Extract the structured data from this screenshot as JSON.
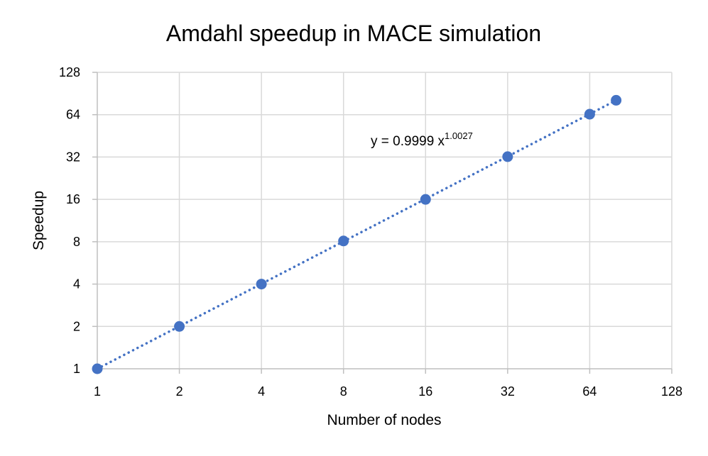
{
  "chart_data": {
    "type": "scatter",
    "title": "Amdahl speedup in MACE simulation",
    "xlabel": "Number of nodes",
    "ylabel": "Speedup",
    "xscale": "log2",
    "yscale": "log2",
    "xlim": [
      1,
      128
    ],
    "ylim": [
      1,
      128
    ],
    "x_ticks": [
      "1",
      "2",
      "4",
      "8",
      "16",
      "32",
      "64",
      "128"
    ],
    "y_ticks": [
      "1",
      "2",
      "4",
      "8",
      "16",
      "32",
      "64",
      "128"
    ],
    "grid": true,
    "legend": "none",
    "series": [
      {
        "x": [
          1,
          2,
          4,
          8,
          16,
          32,
          64,
          80
        ],
        "y": [
          1,
          2,
          4,
          8.1,
          16,
          32.2,
          64.5,
          81
        ]
      }
    ],
    "trendline": {
      "type": "power",
      "coefficient": 0.9999,
      "exponent": 1.0027,
      "x_range": [
        1,
        80
      ],
      "style": "dotted"
    },
    "annotation": {
      "base": "y = 0.9999 x",
      "superscript": "1.0027"
    },
    "colors": {
      "series": "#4472C4",
      "grid": "#D9D9D9",
      "axis": "#BFBFBF"
    }
  }
}
